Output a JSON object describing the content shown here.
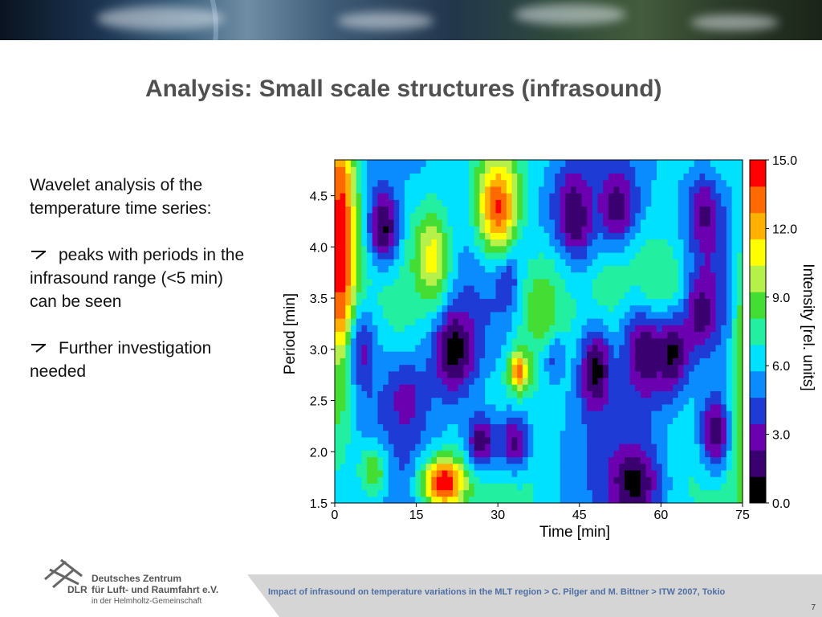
{
  "slide": {
    "title": "Analysis: Small scale structures (infrasound)",
    "intro": "Wavelet analysis of the temperature time series:",
    "bullets": [
      "peaks with periods in the infrasound range (<5 min) can be seen",
      "Further investigation needed"
    ],
    "page_number": "7"
  },
  "footer": {
    "citation": "Impact of infrasound on temperature variations in the MLT region > C. Pilger and M. Bittner > ITW 2007, Tokio",
    "logo_line1": "Deutsches Zentrum",
    "logo_line2": "für Luft- und Raumfahrt e.V.",
    "logo_line3": "in der Helmholtz-Gemeinschaft",
    "logo_abbrev": "DLR"
  },
  "chart_data": {
    "type": "heatmap",
    "xlabel": "Time [min]",
    "ylabel": "Period [min]",
    "colorbar_label": "Intensity [rel. units]",
    "xlim": [
      0,
      75
    ],
    "ylim": [
      1.5,
      4.85
    ],
    "x_ticks": [
      "0",
      "15",
      "30",
      "45",
      "60",
      "75"
    ],
    "y_ticks": [
      "1.5",
      "2.0",
      "2.5",
      "3.0",
      "3.5",
      "4.0",
      "4.5"
    ],
    "colorbar_ticks": [
      "0.0",
      "3.0",
      "6.0",
      "9.0",
      "12.0",
      "15.0"
    ],
    "zlim": [
      0,
      15
    ],
    "colormap": [
      "#000000",
      "#3a0070",
      "#6a00b0",
      "#1f3bd6",
      "#0a8cff",
      "#00e0ff",
      "#22f0a0",
      "#44dd33",
      "#b6f04a",
      "#ffff00",
      "#ffb000",
      "#ff6a00",
      "#ff0000"
    ],
    "features": [
      {
        "t": 3,
        "p": 3.0,
        "v": 0.5,
        "st": 4,
        "sp": 0.45
      },
      {
        "t": 9,
        "p": 4.2,
        "v": 1.0,
        "st": 3,
        "sp": 0.4
      },
      {
        "t": 13,
        "p": 2.5,
        "v": 3.0,
        "st": 4,
        "sp": 0.4
      },
      {
        "t": 22,
        "p": 3.0,
        "v": 0.5,
        "st": 4,
        "sp": 0.45
      },
      {
        "t": 27,
        "p": 2.1,
        "v": 1.5,
        "st": 3,
        "sp": 0.3
      },
      {
        "t": 32,
        "p": 3.7,
        "v": 1.0,
        "st": 2,
        "sp": 0.3
      },
      {
        "t": 33,
        "p": 2.1,
        "v": 2.0,
        "st": 3,
        "sp": 0.3
      },
      {
        "t": 40,
        "p": 3.0,
        "v": 0.5,
        "st": 2,
        "sp": 0.25
      },
      {
        "t": 44,
        "p": 4.3,
        "v": 1.0,
        "st": 4,
        "sp": 0.5
      },
      {
        "t": 48,
        "p": 2.8,
        "v": 0.5,
        "st": 3,
        "sp": 0.4
      },
      {
        "t": 52,
        "p": 4.4,
        "v": 1.5,
        "st": 4,
        "sp": 0.4
      },
      {
        "t": 55,
        "p": 1.7,
        "v": 0.5,
        "st": 4,
        "sp": 0.35
      },
      {
        "t": 57,
        "p": 3.0,
        "v": 1.0,
        "st": 4,
        "sp": 0.5
      },
      {
        "t": 62,
        "p": 3.0,
        "v": 0.5,
        "st": 3,
        "sp": 0.4
      },
      {
        "t": 67,
        "p": 3.4,
        "v": 1.0,
        "st": 3,
        "sp": 0.4
      },
      {
        "t": 68,
        "p": 4.3,
        "v": 2.0,
        "st": 3,
        "sp": 0.4
      },
      {
        "t": 70,
        "p": 2.2,
        "v": 1.5,
        "st": 3,
        "sp": 0.4
      },
      {
        "t": 1,
        "p": 4.0,
        "v": 15.0,
        "st": 3,
        "sp": 1.5
      },
      {
        "t": 75,
        "p": 2.8,
        "v": 9.0,
        "st": 2,
        "sp": 1.5
      },
      {
        "t": 20,
        "p": 1.7,
        "v": 15.0,
        "st": 4,
        "sp": 0.25
      },
      {
        "t": 30,
        "p": 4.4,
        "v": 14.0,
        "st": 4,
        "sp": 0.5
      },
      {
        "t": 18,
        "p": 3.9,
        "v": 11.0,
        "st": 3,
        "sp": 0.45
      },
      {
        "t": 34,
        "p": 2.8,
        "v": 14.0,
        "st": 2,
        "sp": 0.2
      },
      {
        "t": 38,
        "p": 3.4,
        "v": 9.0,
        "st": 5,
        "sp": 0.6
      },
      {
        "t": 60,
        "p": 3.7,
        "v": 8.0,
        "st": 5,
        "sp": 0.4
      },
      {
        "t": 7,
        "p": 1.8,
        "v": 9.0,
        "st": 3,
        "sp": 0.3
      }
    ]
  }
}
